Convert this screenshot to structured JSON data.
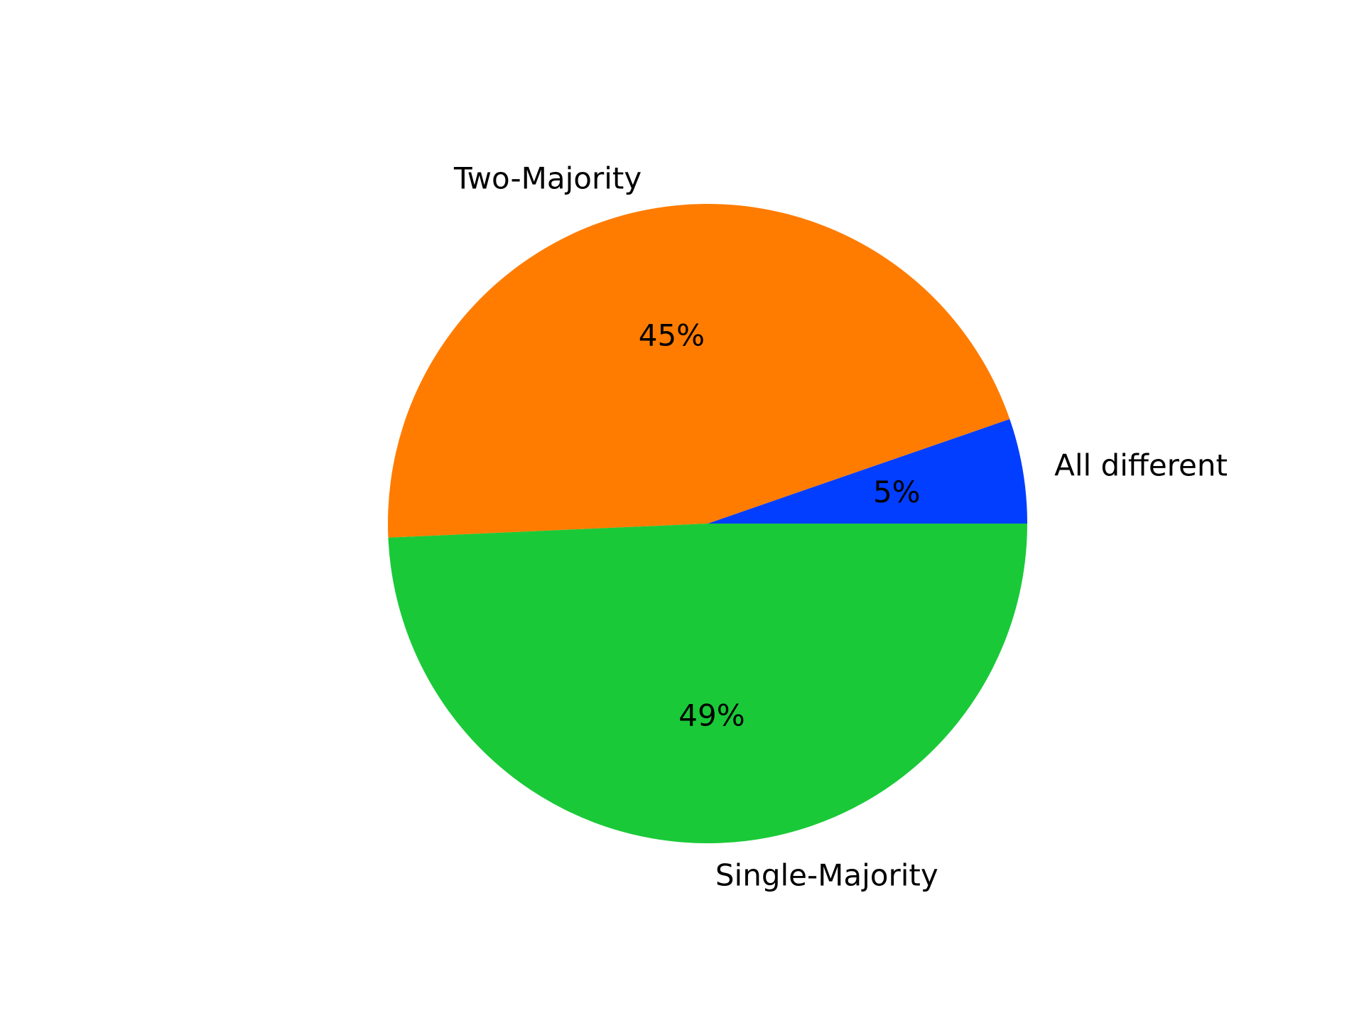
{
  "chart_data": {
    "type": "pie",
    "title": "",
    "start_angle_deg": 0,
    "direction": "counterclockwise",
    "slices": [
      {
        "label": "All different",
        "value": 5.3,
        "pct_label": "5%",
        "color": "#023EFF"
      },
      {
        "label": "Two-Majority",
        "value": 45.4,
        "pct_label": "45%",
        "color": "#FF7C00"
      },
      {
        "label": "Single-Majority",
        "value": 49.3,
        "pct_label": "49%",
        "color": "#1AC938"
      }
    ]
  }
}
